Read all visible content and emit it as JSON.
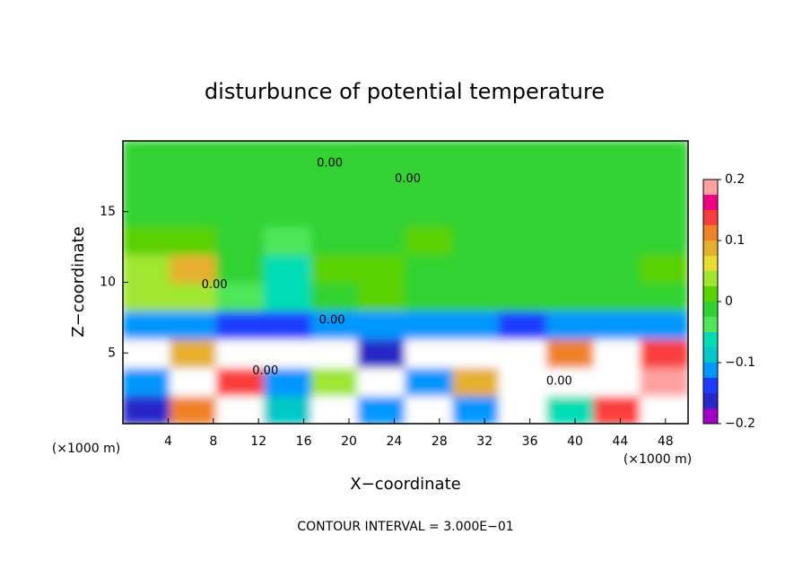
{
  "chart_data": {
    "type": "heatmap",
    "title": "disturbunce of potential temperature",
    "x_label": "X−coordinate",
    "y_label": "Z−coordinate",
    "x_unit": "(×1000 m)",
    "x_unit_right": "(×1000 m)",
    "footer": "CONTOUR INTERVAL = 3.000E−01",
    "xlim": [
      0,
      50
    ],
    "ylim": [
      0,
      20
    ],
    "xticks": [
      4,
      8,
      12,
      16,
      20,
      24,
      28,
      32,
      36,
      40,
      44,
      48
    ],
    "yticks": [
      5,
      10,
      15
    ],
    "x": [
      2.1,
      6.3,
      10.4,
      14.6,
      18.8,
      22.9,
      27.1,
      31.3,
      35.4,
      39.6,
      43.8,
      47.9
    ],
    "y": [
      1,
      3,
      5,
      7,
      9,
      11,
      13,
      15,
      17,
      19
    ],
    "values": [
      [
        -0.15,
        0.12,
        -0.25,
        -0.08,
        -0.25,
        -0.12,
        -0.25,
        -0.1,
        -0.25,
        -0.05,
        0.15,
        -0.25
      ],
      [
        -0.1,
        -0.25,
        0.15,
        -0.12,
        0.05,
        -0.25,
        -0.12,
        0.08,
        -0.25,
        -0.25,
        -0.25,
        0.18
      ],
      [
        -0.25,
        0.1,
        -0.25,
        -0.25,
        -0.25,
        -0.15,
        -0.25,
        -0.25,
        -0.25,
        0.12,
        -0.25,
        0.15
      ],
      [
        -0.12,
        -0.1,
        -0.14,
        -0.13,
        -0.1,
        -0.12,
        -0.11,
        -0.12,
        -0.13,
        -0.1,
        -0.12,
        -0.12
      ],
      [
        0.03,
        0.04,
        -0.03,
        -0.05,
        0,
        0.02,
        0,
        0,
        0,
        0,
        0,
        0
      ],
      [
        0.05,
        0.08,
        -0.02,
        -0.07,
        0.01,
        0.01,
        0,
        0,
        0,
        0,
        0,
        0.01
      ],
      [
        0.02,
        0.02,
        -0.01,
        -0.03,
        0,
        0,
        0.01,
        0,
        0,
        0,
        0,
        0
      ],
      [
        0,
        0,
        0,
        -0.02,
        0,
        0,
        0,
        0,
        0,
        0,
        0,
        0
      ],
      [
        0,
        0,
        0,
        0,
        0,
        0,
        0,
        0,
        0,
        0,
        0,
        0
      ],
      [
        -0.02,
        0,
        0,
        0,
        0,
        0,
        0,
        0,
        0,
        0,
        0,
        0
      ]
    ],
    "colorbar": {
      "levels": [
        -0.2,
        -0.175,
        -0.15,
        -0.125,
        -0.1,
        -0.075,
        -0.05,
        -0.025,
        0,
        0.025,
        0.05,
        0.075,
        0.1,
        0.125,
        0.15,
        0.175,
        0.2
      ],
      "colors": [
        "#a000c8",
        "#2828c8",
        "#1e3cff",
        "#0096ff",
        "#00c8c8",
        "#00dcb4",
        "#50e65a",
        "#32d232",
        "#5ad200",
        "#a0e632",
        "#e6dc32",
        "#e6af2d",
        "#f08228",
        "#fa3c3c",
        "#f00082",
        "#ffa0a0"
      ],
      "ticks": [
        {
          "value": -0.2,
          "label": "−0.2"
        },
        {
          "value": -0.1,
          "label": "−0.1"
        },
        0,
        0.1,
        0.2
      ]
    },
    "annotations": [
      {
        "text": "0.00",
        "x": 18.3,
        "y": 18.4
      },
      {
        "text": "0.00",
        "x": 25.2,
        "y": 17.3
      },
      {
        "text": "0.00",
        "x": 8.1,
        "y": 9.8
      },
      {
        "text": "0.00",
        "x": 18.5,
        "y": 7.3
      },
      {
        "text": "0.00",
        "x": 12.6,
        "y": 3.7
      },
      {
        "text": "0.00",
        "x": 38.6,
        "y": 3.0
      }
    ]
  }
}
